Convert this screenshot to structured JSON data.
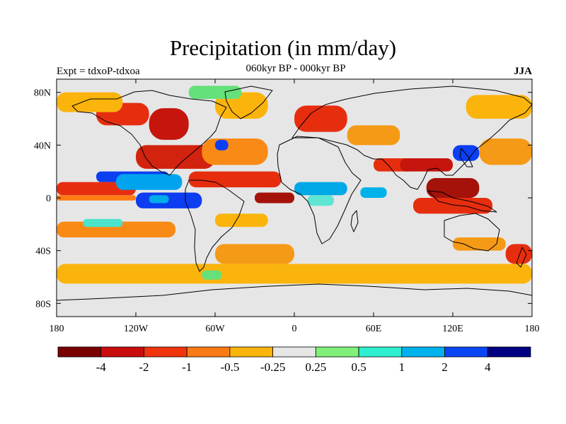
{
  "figure": {
    "title": "Precipitation (in mm/day)",
    "center_string": "060kyr BP - 000kyr BP",
    "left_string": "Expt = tdxoP-tdxoa",
    "right_string": "JJA"
  },
  "map": {
    "projection": "cylindrical equidistant",
    "lon_range": [
      -180,
      180
    ],
    "lat_range": [
      -90,
      90
    ],
    "lat_ticks": [
      {
        "lat": 80,
        "label": "80N"
      },
      {
        "lat": 40,
        "label": "40N"
      },
      {
        "lat": 0,
        "label": "0"
      },
      {
        "lat": -40,
        "label": "40S"
      },
      {
        "lat": -80,
        "label": "80S"
      }
    ],
    "lon_ticks": [
      {
        "lon": -180,
        "label": "180"
      },
      {
        "lon": -120,
        "label": "120W"
      },
      {
        "lon": -60,
        "label": "60W"
      },
      {
        "lon": 0,
        "label": "0"
      },
      {
        "lon": 60,
        "label": "60E"
      },
      {
        "lon": 120,
        "label": "120E"
      },
      {
        "lon": 180,
        "label": "180"
      }
    ],
    "background_color": "#e6e6e6",
    "anomaly_regions": [
      {
        "lon": [
          -180,
          -120
        ],
        "lat": [
          2,
          12
        ],
        "color": "#e62e0f",
        "level": -1
      },
      {
        "lon": [
          -180,
          -120
        ],
        "lat": [
          -2,
          2
        ],
        "color": "#fc7b14",
        "level": -0.5
      },
      {
        "lon": [
          -150,
          -95
        ],
        "lat": [
          12,
          20
        ],
        "color": "#0b3ff2",
        "level": 2
      },
      {
        "lon": [
          -135,
          -85
        ],
        "lat": [
          6,
          18
        ],
        "color": "#00a4ee",
        "level": 1
      },
      {
        "lon": [
          -120,
          -70
        ],
        "lat": [
          -8,
          4
        ],
        "color": "#0d3df0",
        "level": 2
      },
      {
        "lon": [
          -110,
          -95
        ],
        "lat": [
          -4,
          2
        ],
        "color": "#00ace8",
        "level": 1
      },
      {
        "lon": [
          -120,
          -60
        ],
        "lat": [
          22,
          40
        ],
        "color": "#d2230e",
        "level": -2
      },
      {
        "lon": [
          -110,
          -80
        ],
        "lat": [
          44,
          68
        ],
        "color": "#c6150c",
        "level": -4
      },
      {
        "lon": [
          -150,
          -110
        ],
        "lat": [
          55,
          72
        ],
        "color": "#e62e0f",
        "level": -1
      },
      {
        "lon": [
          -70,
          -20
        ],
        "lat": [
          25,
          45
        ],
        "color": "#fa8a16",
        "level": -0.5
      },
      {
        "lon": [
          -60,
          -50
        ],
        "lat": [
          36,
          44
        ],
        "color": "#0b3ff2",
        "level": 2
      },
      {
        "lon": [
          -80,
          -10
        ],
        "lat": [
          8,
          20
        ],
        "color": "#e62e0f",
        "level": -1
      },
      {
        "lon": [
          -30,
          0
        ],
        "lat": [
          -4,
          4
        ],
        "color": "#a5120a",
        "level": -4
      },
      {
        "lon": [
          0,
          40
        ],
        "lat": [
          2,
          12
        ],
        "color": "#00a8e6",
        "level": 1
      },
      {
        "lon": [
          10,
          30
        ],
        "lat": [
          -6,
          2
        ],
        "color": "#5ee6d2",
        "level": 0.5
      },
      {
        "lon": [
          40,
          80
        ],
        "lat": [
          40,
          55
        ],
        "color": "#f59a16",
        "level": -0.5
      },
      {
        "lon": [
          0,
          40
        ],
        "lat": [
          50,
          70
        ],
        "color": "#e62e0f",
        "level": -1
      },
      {
        "lon": [
          60,
          90
        ],
        "lat": [
          20,
          30
        ],
        "color": "#e62e0f",
        "level": -1
      },
      {
        "lon": [
          80,
          120
        ],
        "lat": [
          20,
          30
        ],
        "color": "#c6150c",
        "level": -2
      },
      {
        "lon": [
          100,
          140
        ],
        "lat": [
          0,
          15
        ],
        "color": "#a5120a",
        "level": -4
      },
      {
        "lon": [
          90,
          150
        ],
        "lat": [
          -12,
          0
        ],
        "color": "#e62e0f",
        "level": -1
      },
      {
        "lon": [
          120,
          140
        ],
        "lat": [
          28,
          40
        ],
        "color": "#0b3ff2",
        "level": 2
      },
      {
        "lon": [
          140,
          180
        ],
        "lat": [
          25,
          45
        ],
        "color": "#f59a16",
        "level": -0.5
      },
      {
        "lon": [
          50,
          70
        ],
        "lat": [
          0,
          8
        ],
        "color": "#00b2ea",
        "level": 1
      },
      {
        "lon": [
          -60,
          -20
        ],
        "lat": [
          -22,
          -12
        ],
        "color": "#fbb40c",
        "level": -0.25
      },
      {
        "lon": [
          -180,
          -90
        ],
        "lat": [
          -30,
          -18
        ],
        "color": "#fa8a16",
        "level": -0.5
      },
      {
        "lon": [
          -160,
          -130
        ],
        "lat": [
          -22,
          -16
        ],
        "color": "#4be3c9",
        "level": 0.5
      },
      {
        "lon": [
          -180,
          180
        ],
        "lat": [
          -65,
          -50
        ],
        "color": "#fbb40c",
        "level": -0.25
      },
      {
        "lon": [
          -60,
          0
        ],
        "lat": [
          -50,
          -35
        ],
        "color": "#f59a16",
        "level": -0.5
      },
      {
        "lon": [
          -70,
          -55
        ],
        "lat": [
          -62,
          -55
        ],
        "color": "#66e07a",
        "level": 0.25
      },
      {
        "lon": [
          120,
          160
        ],
        "lat": [
          -40,
          -30
        ],
        "color": "#f59a16",
        "level": -0.5
      },
      {
        "lon": [
          160,
          180
        ],
        "lat": [
          -50,
          -35
        ],
        "color": "#e62e0f",
        "level": -1
      },
      {
        "lon": [
          -180,
          -130
        ],
        "lat": [
          65,
          80
        ],
        "color": "#fbb40c",
        "level": -0.25
      },
      {
        "lon": [
          -60,
          -20
        ],
        "lat": [
          60,
          80
        ],
        "color": "#fbb40c",
        "level": -0.25
      },
      {
        "lon": [
          130,
          180
        ],
        "lat": [
          60,
          78
        ],
        "color": "#fbb40c",
        "level": -0.25
      },
      {
        "lon": [
          -80,
          -40
        ],
        "lat": [
          75,
          85
        ],
        "color": "#66e07a",
        "level": 0.25
      }
    ]
  },
  "colorbar": {
    "colors": [
      "#7a0000",
      "#c90d0d",
      "#f0340e",
      "#fa7b14",
      "#fbb40c",
      "#e6e6e6",
      "#80f07a",
      "#2eefcf",
      "#00b2ee",
      "#0b46f6",
      "#000080"
    ],
    "labels": [
      "-4",
      "-2",
      "-1",
      "-0.5",
      "-0.25",
      "0.25",
      "0.5",
      "1",
      "2",
      "4"
    ]
  }
}
